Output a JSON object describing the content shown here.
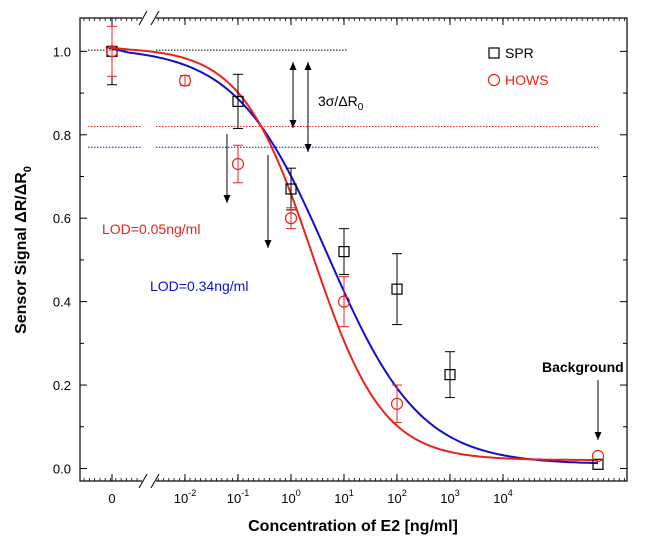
{
  "chart_data": {
    "type": "scatter",
    "xlabel": "Concentration of E2 [ng/ml]",
    "ylabel_main": "Sensor Signal ",
    "ylabel_delta": "ΔR/ΔR",
    "ylabel_sub": "0",
    "x_scale": "log (broken axis; zero-concentration point at left)",
    "ylim": [
      -0.03,
      1.08
    ],
    "y_ticks": [
      "0.0",
      "0.2",
      "0.4",
      "0.6",
      "0.8",
      "1.0"
    ],
    "x_ticks": [
      {
        "label": "0",
        "exp": null,
        "x": 0
      },
      {
        "label": "10",
        "exp": "-2",
        "x": 0.01
      },
      {
        "label": "10",
        "exp": "-1",
        "x": 0.1
      },
      {
        "label": "10",
        "exp": "0",
        "x": 1
      },
      {
        "label": "10",
        "exp": "1",
        "x": 10
      },
      {
        "label": "10",
        "exp": "2",
        "x": 100
      },
      {
        "label": "10",
        "exp": "3",
        "x": 1000
      },
      {
        "label": "10",
        "exp": "4",
        "x": 10000
      }
    ],
    "legend": {
      "position": "top-right",
      "entries": [
        {
          "label": "SPR",
          "marker": "square",
          "color": "#000000"
        },
        {
          "label": "HOWS",
          "marker": "circle",
          "color": "#e8241c"
        }
      ]
    },
    "series": [
      {
        "name": "SPR",
        "marker": "square",
        "color": "#000000",
        "points": [
          {
            "x": 0,
            "y": 1.0,
            "err": 0.08
          },
          {
            "x": 0.1,
            "y": 0.88,
            "err": 0.065
          },
          {
            "x": 1,
            "y": 0.67,
            "err": 0.05
          },
          {
            "x": 10,
            "y": 0.52,
            "err": 0.055
          },
          {
            "x": 100,
            "y": 0.43,
            "err": 0.085
          },
          {
            "x": 1000,
            "y": 0.225,
            "err": 0.055
          },
          {
            "x": "background",
            "y": 0.01,
            "err": 0
          }
        ],
        "fit": {
          "color": "#1010cc",
          "top": 1.01,
          "bottom": 0.01,
          "ec50": 5.0,
          "hill": 0.5
        }
      },
      {
        "name": "HOWS",
        "marker": "circle",
        "color": "#e8241c",
        "points": [
          {
            "x": 0,
            "y": 1.0,
            "err": 0.06
          },
          {
            "x": 0.01,
            "y": 0.93,
            "err": 0.012
          },
          {
            "x": 0.1,
            "y": 0.73,
            "err": 0.045
          },
          {
            "x": 1,
            "y": 0.6,
            "err": 0.025
          },
          {
            "x": 10,
            "y": 0.4,
            "err": 0.06
          },
          {
            "x": 100,
            "y": 0.155,
            "err": 0.045
          },
          {
            "x": "background",
            "y": 0.03,
            "err": 0
          }
        ],
        "fit": {
          "color": "#e8241c",
          "top": 1.01,
          "bottom": 0.02,
          "ec50": 2.5,
          "hill": 0.65
        }
      }
    ],
    "reference_lines": [
      {
        "y": 1.003,
        "color": "#000000",
        "style": "dotted"
      },
      {
        "y": 0.82,
        "color": "#e8241c",
        "style": "dotted"
      },
      {
        "y": 0.77,
        "color": "#1010cc",
        "style": "dotted"
      }
    ],
    "annotations": [
      {
        "text": "3σ/ΔR",
        "sub": "0",
        "color": "#000000"
      },
      {
        "text": "LOD=0.05ng/ml",
        "color": "#e8241c"
      },
      {
        "text": "LOD=0.34ng/ml",
        "color": "#1010cc"
      },
      {
        "text": "Background",
        "color": "#000000",
        "bold": true
      }
    ]
  }
}
